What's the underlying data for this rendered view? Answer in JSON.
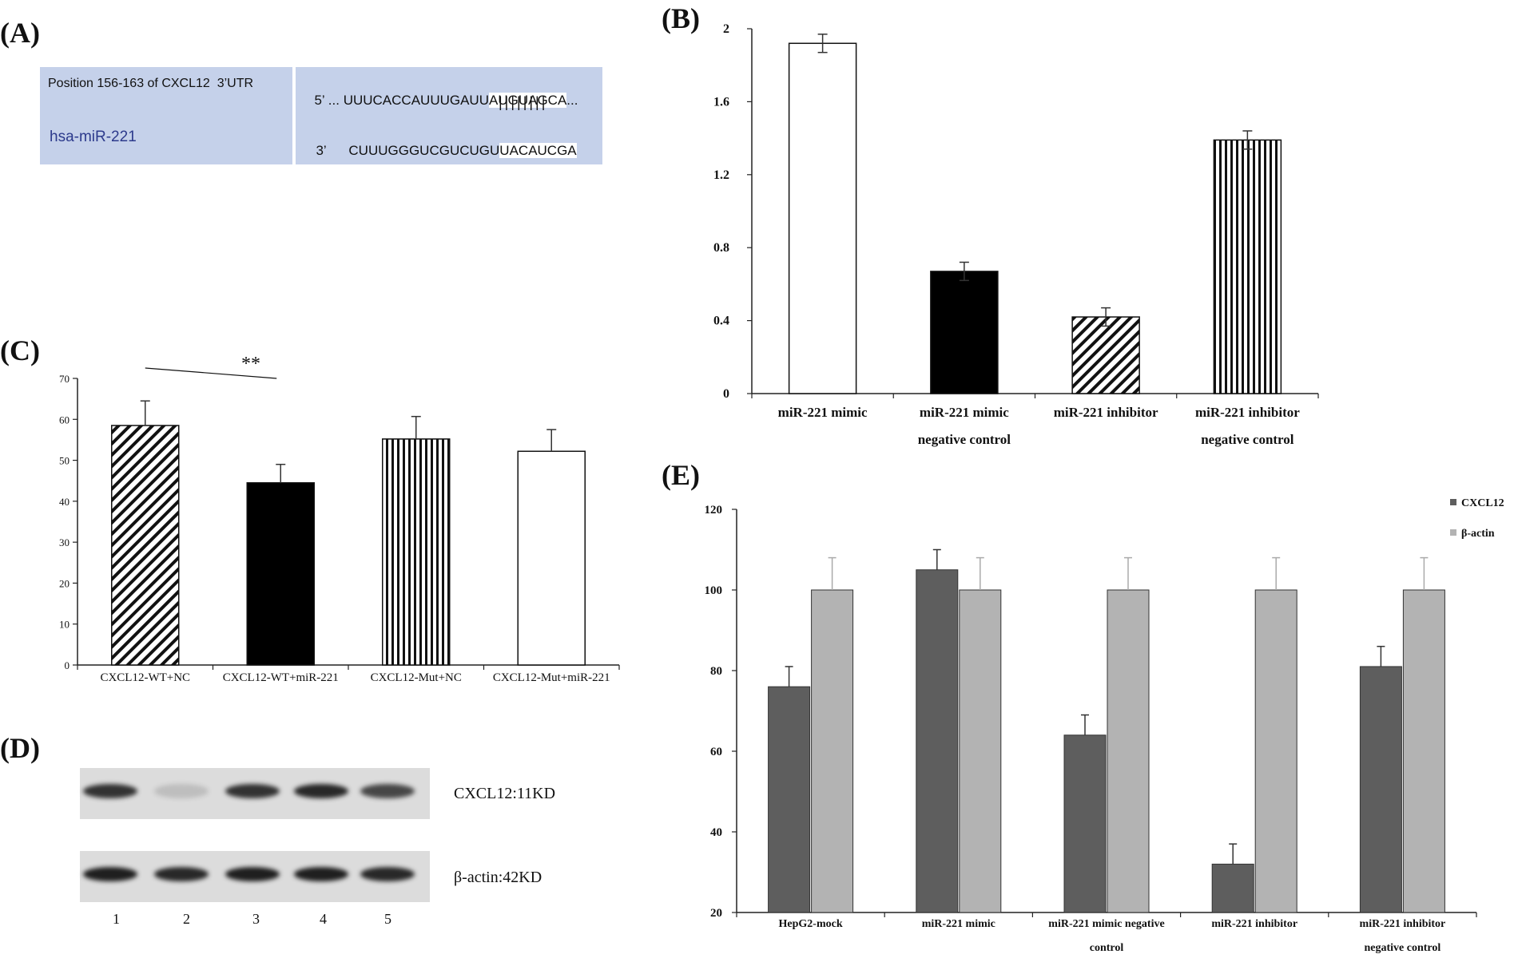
{
  "panels": {
    "A": "(A)",
    "B": "(B)",
    "C": "(C)",
    "D": "(D)",
    "E": "(E)"
  },
  "panel_a": {
    "position_label": "Position 156-163 of CXCL12  3’UTR",
    "mirna_label": "hsa-miR-221",
    "utr_prime": "5’",
    "utr_dots": "...",
    "utr_prefix": "UUUCACCAUUUGAUU",
    "utr_seed": "AUGUAGCA",
    "utr_suffix": "...",
    "pairing": "||||||||",
    "mir_prime": "3’",
    "mir_prefix": "CUUUGGGUCGUCUGU",
    "mir_seed": "UACAUCGA"
  },
  "panel_d": {
    "bands": [
      {
        "label": "CXCL12:11KD",
        "intensities": [
          0.85,
          0.15,
          0.85,
          0.9,
          0.75
        ]
      },
      {
        "label": "β-actin:42KD",
        "intensities": [
          0.95,
          0.9,
          0.95,
          0.95,
          0.9
        ]
      }
    ],
    "lanes": [
      "1",
      "2",
      "3",
      "4",
      "5"
    ]
  },
  "chart_data": [
    {
      "id": "B",
      "type": "bar",
      "categories": [
        [
          "miR-221 mimic"
        ],
        [
          "miR-221 mimic",
          "negative control"
        ],
        [
          "miR-221 inhibitor"
        ],
        [
          "miR-221 inhibitor",
          "negative control"
        ]
      ],
      "values": [
        1.92,
        0.67,
        0.42,
        1.39
      ],
      "errors": [
        0.05,
        0.05,
        0.05,
        0.05
      ],
      "patterns": [
        "white",
        "black",
        "diagonal",
        "vertical"
      ],
      "ylim": [
        0,
        2
      ],
      "yticks": [
        "0",
        "0.4",
        "0.8",
        "1.2",
        "1.6",
        "2"
      ],
      "title": "",
      "xlabel": "",
      "ylabel": ""
    },
    {
      "id": "C",
      "type": "bar",
      "categories": [
        [
          "CXCL12-WT+NC"
        ],
        [
          "CXCL12-WT+miR-221"
        ],
        [
          "CXCL12-Mut+NC"
        ],
        [
          "CXCL12-Mut+miR-221"
        ]
      ],
      "values": [
        58.5,
        44.5,
        55.2,
        52.2
      ],
      "errors": [
        6,
        4.5,
        5.5,
        5.3
      ],
      "patterns": [
        "diagonal",
        "black",
        "vertical",
        "white"
      ],
      "ylim": [
        0,
        70
      ],
      "yticks": [
        "0",
        "10",
        "20",
        "30",
        "40",
        "50",
        "60",
        "70"
      ],
      "significance": "**",
      "title": "",
      "xlabel": "",
      "ylabel": ""
    },
    {
      "id": "E",
      "type": "bar",
      "categories": [
        [
          "HepG2-mock"
        ],
        [
          "miR-221 mimic"
        ],
        [
          "miR-221 mimic negative",
          "control"
        ],
        [
          "miR-221 inhibitor"
        ],
        [
          "miR-221 inhibitor",
          "negative control"
        ]
      ],
      "series": [
        {
          "name": "CXCL12",
          "color": "#5e5e5e",
          "values": [
            76,
            105,
            64,
            32,
            81
          ],
          "errors": [
            5,
            5,
            5,
            5,
            5
          ]
        },
        {
          "name": "β-actin",
          "color": "#b3b3b3",
          "values": [
            100,
            100,
            100,
            100,
            100
          ],
          "errors": [
            8,
            8,
            8,
            8,
            8
          ]
        }
      ],
      "ylim": [
        20,
        120
      ],
      "yticks": [
        "20",
        "40",
        "60",
        "80",
        "100",
        "120"
      ],
      "legend_position": "top-right",
      "title": "",
      "xlabel": "",
      "ylabel": ""
    }
  ]
}
